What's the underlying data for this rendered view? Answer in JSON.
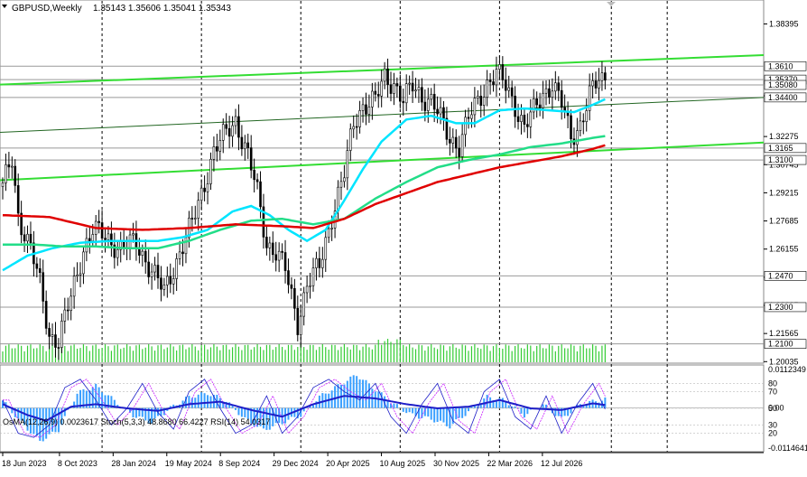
{
  "header": {
    "symbol_timeframe": "GBPUSD,Weekly",
    "ohlc": "1.35143 1.35606 1.35041 1.35343"
  },
  "indicator_header": "OsMA(12,26,9) 0.0023617 Stoch(5,3,3) 48.8680 66.4227 RSI(14) 54.0317",
  "colors": {
    "background": "#ffffff",
    "candles": "#000000",
    "ema_fast": "#00e5ff",
    "ema_mid": "#22dd88",
    "ema_slow": "#e00000",
    "trend_lines": "#33dd33",
    "histogram": "#33cc33",
    "osma": "#3aa0ff",
    "stoch_main": "#1e1ec8",
    "stoch_signal": "#c81eff",
    "rsi": "#1e1ec8"
  },
  "chart_data": [
    {
      "type": "candlestick",
      "symbol": "GBPUSD",
      "timeframe": "Weekly",
      "ylim": [
        1.2005,
        1.396
      ],
      "y_tick_labels": [
        "1.38395",
        "1.34490",
        "1.32275",
        "1.30745",
        "1.29215",
        "1.27685",
        "1.26155",
        "1.24625",
        "1.23095",
        "1.21565",
        "1.20035"
      ],
      "level_labels": [
        "1.3610",
        "1.35370",
        "1.35080",
        "1.34400",
        "1.3165",
        "1.3100",
        "1.2470",
        "1.2300",
        "1.2100"
      ],
      "x_tick_labels": [
        "18 Jun 2023",
        "8 Oct 2023",
        "28 Jan 2024",
        "19 May 2024",
        "8 Sep 2024",
        "29 Dec 2024",
        "20 Apr 2025",
        "10 Aug 2025",
        "30 Nov 2025",
        "22 Mar 2026",
        "12 Jul 2026"
      ],
      "anchors": [
        [
          0,
          1.295
        ],
        [
          3,
          1.31
        ],
        [
          5,
          1.28
        ],
        [
          9,
          1.262
        ],
        [
          12,
          1.242
        ],
        [
          15,
          1.215
        ],
        [
          18,
          1.212
        ],
        [
          22,
          1.235
        ],
        [
          26,
          1.262
        ],
        [
          29,
          1.272
        ],
        [
          33,
          1.268
        ],
        [
          38,
          1.262
        ],
        [
          43,
          1.265
        ],
        [
          48,
          1.25
        ],
        [
          52,
          1.238
        ],
        [
          57,
          1.26
        ],
        [
          61,
          1.275
        ],
        [
          64,
          1.292
        ],
        [
          68,
          1.315
        ],
        [
          71,
          1.322
        ],
        [
          75,
          1.332
        ],
        [
          79,
          1.312
        ],
        [
          82,
          1.292
        ],
        [
          85,
          1.265
        ],
        [
          88,
          1.26
        ],
        [
          91,
          1.25
        ],
        [
          95,
          1.222
        ],
        [
          98,
          1.242
        ],
        [
          102,
          1.252
        ],
        [
          106,
          1.28
        ],
        [
          110,
          1.302
        ],
        [
          113,
          1.33
        ],
        [
          116,
          1.34
        ],
        [
          120,
          1.342
        ],
        [
          123,
          1.355
        ],
        [
          126,
          1.352
        ],
        [
          129,
          1.342
        ],
        [
          132,
          1.35
        ],
        [
          135,
          1.345
        ],
        [
          138,
          1.342
        ],
        [
          141,
          1.332
        ],
        [
          144,
          1.322
        ],
        [
          147,
          1.318
        ],
        [
          150,
          1.332
        ],
        [
          153,
          1.342
        ],
        [
          156,
          1.352
        ],
        [
          159,
          1.357
        ],
        [
          162,
          1.35
        ],
        [
          165,
          1.34
        ],
        [
          168,
          1.328
        ],
        [
          171,
          1.336
        ],
        [
          174,
          1.346
        ],
        [
          177,
          1.352
        ],
        [
          180,
          1.34
        ],
        [
          183,
          1.322
        ],
        [
          186,
          1.33
        ],
        [
          189,
          1.345
        ],
        [
          192,
          1.353
        ],
        [
          194,
          1.3534
        ]
      ],
      "moving_averages": [
        {
          "period": "fast",
          "anchors": [
            [
              0,
              1.25
            ],
            [
              8,
              1.258
            ],
            [
              16,
              1.262
            ],
            [
              25,
              1.265
            ],
            [
              35,
              1.266
            ],
            [
              50,
              1.266
            ],
            [
              58,
              1.268
            ],
            [
              66,
              1.272
            ],
            [
              74,
              1.282
            ],
            [
              80,
              1.285
            ],
            [
              86,
              1.28
            ],
            [
              92,
              1.272
            ],
            [
              98,
              1.266
            ],
            [
              104,
              1.272
            ],
            [
              110,
              1.288
            ],
            [
              116,
              1.305
            ],
            [
              122,
              1.32
            ],
            [
              130,
              1.332
            ],
            [
              138,
              1.334
            ],
            [
              146,
              1.33
            ],
            [
              152,
              1.33
            ],
            [
              160,
              1.337
            ],
            [
              168,
              1.338
            ],
            [
              176,
              1.337
            ],
            [
              184,
              1.336
            ],
            [
              190,
              1.34
            ],
            [
              194,
              1.343
            ]
          ]
        },
        {
          "period": "mid",
          "anchors": [
            [
              0,
              1.264
            ],
            [
              10,
              1.264
            ],
            [
              20,
              1.263
            ],
            [
              30,
              1.263
            ],
            [
              40,
              1.262
            ],
            [
              50,
              1.262
            ],
            [
              60,
              1.266
            ],
            [
              70,
              1.272
            ],
            [
              80,
              1.277
            ],
            [
              90,
              1.278
            ],
            [
              100,
              1.275
            ],
            [
              110,
              1.278
            ],
            [
              120,
              1.289
            ],
            [
              130,
              1.298
            ],
            [
              140,
              1.306
            ],
            [
              150,
              1.31
            ],
            [
              160,
              1.313
            ],
            [
              170,
              1.317
            ],
            [
              180,
              1.319
            ],
            [
              190,
              1.322
            ],
            [
              194,
              1.323
            ]
          ]
        },
        {
          "period": "slow",
          "anchors": [
            [
              0,
              1.28
            ],
            [
              15,
              1.279
            ],
            [
              30,
              1.273
            ],
            [
              45,
              1.272
            ],
            [
              60,
              1.273
            ],
            [
              75,
              1.275
            ],
            [
              90,
              1.274
            ],
            [
              100,
              1.273
            ],
            [
              110,
              1.278
            ],
            [
              120,
              1.286
            ],
            [
              130,
              1.292
            ],
            [
              140,
              1.298
            ],
            [
              150,
              1.302
            ],
            [
              160,
              1.306
            ],
            [
              170,
              1.309
            ],
            [
              180,
              1.312
            ],
            [
              190,
              1.316
            ],
            [
              194,
              1.318
            ]
          ]
        }
      ]
    },
    {
      "type": "oscillator",
      "ylim": [
        -0.0114,
        0.0112
      ],
      "y_tick_labels": [
        "0.0112349",
        "0.00",
        "-0.0114641"
      ],
      "secondary_y_labels": [
        "80",
        "70",
        "50",
        "30",
        "20"
      ],
      "osma_anchors": [
        [
          0,
          0.002
        ],
        [
          6,
          -0.004
        ],
        [
          12,
          -0.009
        ],
        [
          18,
          -0.006
        ],
        [
          24,
          0.004
        ],
        [
          30,
          0.006
        ],
        [
          36,
          0.002
        ],
        [
          42,
          -0.002
        ],
        [
          48,
          -0.004
        ],
        [
          54,
          0.0
        ],
        [
          60,
          0.003
        ],
        [
          66,
          0.004
        ],
        [
          72,
          0.002
        ],
        [
          78,
          -0.003
        ],
        [
          84,
          -0.006
        ],
        [
          90,
          -0.004
        ],
        [
          96,
          -0.002
        ],
        [
          102,
          0.003
        ],
        [
          108,
          0.006
        ],
        [
          114,
          0.009
        ],
        [
          120,
          0.005
        ],
        [
          126,
          0.001
        ],
        [
          132,
          -0.002
        ],
        [
          138,
          -0.003
        ],
        [
          144,
          -0.005
        ],
        [
          150,
          -0.001
        ],
        [
          156,
          0.003
        ],
        [
          162,
          0.002
        ],
        [
          168,
          -0.002
        ],
        [
          174,
          0.001
        ],
        [
          180,
          -0.003
        ],
        [
          186,
          0.001
        ],
        [
          194,
          0.0024
        ]
      ],
      "stoch_anchors": [
        [
          0,
          60
        ],
        [
          5,
          20
        ],
        [
          10,
          15
        ],
        [
          15,
          30
        ],
        [
          20,
          75
        ],
        [
          25,
          85
        ],
        [
          30,
          60
        ],
        [
          35,
          30
        ],
        [
          40,
          50
        ],
        [
          45,
          80
        ],
        [
          50,
          45
        ],
        [
          55,
          25
        ],
        [
          60,
          70
        ],
        [
          65,
          85
        ],
        [
          70,
          50
        ],
        [
          75,
          20
        ],
        [
          80,
          30
        ],
        [
          85,
          65
        ],
        [
          90,
          20
        ],
        [
          95,
          40
        ],
        [
          100,
          75
        ],
        [
          105,
          85
        ],
        [
          110,
          70
        ],
        [
          115,
          60
        ],
        [
          120,
          80
        ],
        [
          125,
          40
        ],
        [
          130,
          20
        ],
        [
          135,
          55
        ],
        [
          140,
          80
        ],
        [
          145,
          35
        ],
        [
          150,
          20
        ],
        [
          155,
          70
        ],
        [
          160,
          85
        ],
        [
          165,
          40
        ],
        [
          170,
          25
        ],
        [
          175,
          65
        ],
        [
          180,
          20
        ],
        [
          185,
          55
        ],
        [
          190,
          80
        ],
        [
          194,
          49
        ]
      ],
      "rsi_anchors": [
        [
          0,
          55
        ],
        [
          8,
          42
        ],
        [
          14,
          35
        ],
        [
          22,
          52
        ],
        [
          30,
          55
        ],
        [
          40,
          50
        ],
        [
          50,
          47
        ],
        [
          60,
          55
        ],
        [
          70,
          58
        ],
        [
          80,
          48
        ],
        [
          90,
          40
        ],
        [
          100,
          55
        ],
        [
          110,
          65
        ],
        [
          120,
          62
        ],
        [
          130,
          55
        ],
        [
          140,
          50
        ],
        [
          150,
          52
        ],
        [
          160,
          60
        ],
        [
          170,
          50
        ],
        [
          180,
          48
        ],
        [
          190,
          56
        ],
        [
          194,
          54
        ]
      ]
    }
  ]
}
